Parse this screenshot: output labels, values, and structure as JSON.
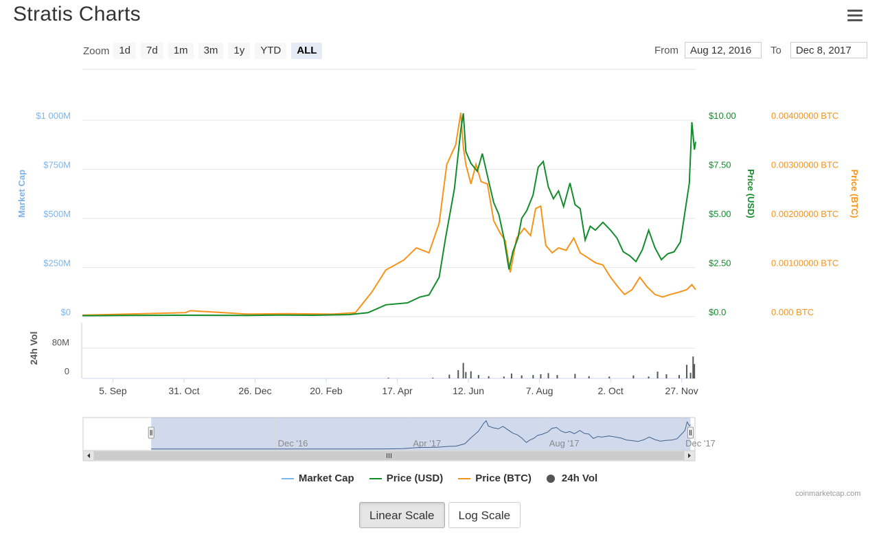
{
  "page": {
    "title": "Stratis Charts"
  },
  "zoom": {
    "label": "Zoom",
    "buttons": [
      "1d",
      "7d",
      "1m",
      "3m",
      "1y",
      "YTD",
      "ALL"
    ],
    "active": "ALL"
  },
  "range": {
    "from_label": "From",
    "from_value": "Aug 12, 2016",
    "to_label": "To",
    "to_value": "Dec 8, 2017"
  },
  "colors": {
    "market_cap": "#7cb5ec",
    "price_usd": "#118c2b",
    "price_btc": "#f7931a",
    "volume": "#555555",
    "grid": "#e6e6e6",
    "navigator_mask": "rgba(102,133,194,0.3)"
  },
  "chart_data": {
    "type": "line",
    "x_tick_labels": [
      "5. Sep",
      "31. Oct",
      "26. Dec",
      "20. Feb",
      "17. Apr",
      "12. Jun",
      "7. Aug",
      "2. Oct",
      "27. Nov"
    ],
    "x_ticks": [
      "2016-09-05",
      "2016-10-31",
      "2016-12-26",
      "2017-02-20",
      "2017-04-17",
      "2017-06-12",
      "2017-08-07",
      "2017-10-02",
      "2017-11-27"
    ],
    "x_range": [
      "2016-08-12",
      "2017-12-08"
    ],
    "axes": {
      "market_cap": {
        "title": "Market Cap",
        "ticks": [
          "$0",
          "$250M",
          "$500M",
          "$750M",
          "$1 000M"
        ],
        "range": [
          0,
          1000000000
        ]
      },
      "price_usd": {
        "title": "Price (USD)",
        "ticks": [
          "$0.0",
          "$2.50",
          "$5.00",
          "$7.50",
          "$10.00"
        ],
        "range": [
          0,
          10
        ]
      },
      "price_btc": {
        "title": "Price (BTC)",
        "ticks": [
          "0.000 BTC",
          "0.00100000 BTC",
          "0.00200000 BTC",
          "0.00300000 BTC",
          "0.00400000 BTC"
        ],
        "range": [
          0,
          0.004
        ]
      },
      "volume": {
        "title": "24h Vol",
        "ticks": [
          "0",
          "80M"
        ],
        "range": [
          0,
          80000000
        ]
      }
    },
    "series": [
      {
        "name": "Price (USD)",
        "axis": "price_usd",
        "points": [
          [
            "2016-08-12",
            0.05
          ],
          [
            "2016-09-15",
            0.06
          ],
          [
            "2016-11-01",
            0.07
          ],
          [
            "2016-12-20",
            0.06
          ],
          [
            "2017-01-15",
            0.08
          ],
          [
            "2017-02-10",
            0.07
          ],
          [
            "2017-03-10",
            0.1
          ],
          [
            "2017-03-25",
            0.2
          ],
          [
            "2017-04-08",
            0.6
          ],
          [
            "2017-04-25",
            0.7
          ],
          [
            "2017-05-05",
            1.0
          ],
          [
            "2017-05-12",
            1.1
          ],
          [
            "2017-05-20",
            2.0
          ],
          [
            "2017-05-25",
            4.0
          ],
          [
            "2017-06-01",
            6.5
          ],
          [
            "2017-06-06",
            9.5
          ],
          [
            "2017-06-08",
            10.35
          ],
          [
            "2017-06-10",
            8.4
          ],
          [
            "2017-06-14",
            7.8
          ],
          [
            "2017-06-19",
            7.4
          ],
          [
            "2017-06-23",
            8.3
          ],
          [
            "2017-06-28",
            6.9
          ],
          [
            "2017-07-02",
            5.8
          ],
          [
            "2017-07-06",
            5.2
          ],
          [
            "2017-07-10",
            4.0
          ],
          [
            "2017-07-14",
            2.4
          ],
          [
            "2017-07-17",
            3.3
          ],
          [
            "2017-07-21",
            4.0
          ],
          [
            "2017-07-24",
            5.0
          ],
          [
            "2017-07-28",
            5.4
          ],
          [
            "2017-08-02",
            6.2
          ],
          [
            "2017-08-06",
            7.6
          ],
          [
            "2017-08-10",
            7.9
          ],
          [
            "2017-08-14",
            6.6
          ],
          [
            "2017-08-18",
            6.0
          ],
          [
            "2017-08-22",
            6.4
          ],
          [
            "2017-08-26",
            5.6
          ],
          [
            "2017-08-31",
            6.8
          ],
          [
            "2017-09-04",
            5.7
          ],
          [
            "2017-09-08",
            5.5
          ],
          [
            "2017-09-12",
            3.9
          ],
          [
            "2017-09-16",
            4.6
          ],
          [
            "2017-09-20",
            4.4
          ],
          [
            "2017-09-26",
            4.8
          ],
          [
            "2017-10-02",
            4.4
          ],
          [
            "2017-10-07",
            4.0
          ],
          [
            "2017-10-12",
            3.3
          ],
          [
            "2017-10-17",
            3.1
          ],
          [
            "2017-10-22",
            2.8
          ],
          [
            "2017-10-27",
            3.4
          ],
          [
            "2017-11-01",
            4.4
          ],
          [
            "2017-11-06",
            3.5
          ],
          [
            "2017-11-11",
            2.9
          ],
          [
            "2017-11-16",
            3.2
          ],
          [
            "2017-11-21",
            3.3
          ],
          [
            "2017-11-26",
            3.8
          ],
          [
            "2017-11-30",
            5.5
          ],
          [
            "2017-12-03",
            6.8
          ],
          [
            "2017-12-05",
            9.9
          ],
          [
            "2017-12-07",
            8.5
          ],
          [
            "2017-12-08",
            8.9
          ]
        ]
      },
      {
        "name": "Price (BTC)",
        "axis": "price_btc",
        "points": [
          [
            "2016-08-12",
            3e-05
          ],
          [
            "2016-09-15",
            5e-05
          ],
          [
            "2016-11-01",
            8e-05
          ],
          [
            "2016-11-05",
            0.00012
          ],
          [
            "2016-12-20",
            5e-05
          ],
          [
            "2017-01-20",
            6e-05
          ],
          [
            "2017-02-25",
            5e-05
          ],
          [
            "2017-03-15",
            8e-05
          ],
          [
            "2017-03-28",
            0.0005
          ],
          [
            "2017-04-08",
            0.00095
          ],
          [
            "2017-04-22",
            0.00115
          ],
          [
            "2017-05-02",
            0.0014
          ],
          [
            "2017-05-12",
            0.0013
          ],
          [
            "2017-05-20",
            0.0019
          ],
          [
            "2017-05-26",
            0.0031
          ],
          [
            "2017-06-02",
            0.0035
          ],
          [
            "2017-06-06",
            0.00415
          ],
          [
            "2017-06-08",
            0.00345
          ],
          [
            "2017-06-10",
            0.0031
          ],
          [
            "2017-06-14",
            0.0027
          ],
          [
            "2017-06-18",
            0.0031
          ],
          [
            "2017-06-22",
            0.00275
          ],
          [
            "2017-06-27",
            0.0027
          ],
          [
            "2017-07-02",
            0.00195
          ],
          [
            "2017-07-07",
            0.0017
          ],
          [
            "2017-07-11",
            0.00155
          ],
          [
            "2017-07-15",
            0.0009
          ],
          [
            "2017-07-20",
            0.0016
          ],
          [
            "2017-07-26",
            0.0018
          ],
          [
            "2017-07-31",
            0.00165
          ],
          [
            "2017-08-04",
            0.0022
          ],
          [
            "2017-08-08",
            0.00225
          ],
          [
            "2017-08-12",
            0.00145
          ],
          [
            "2017-08-17",
            0.0013
          ],
          [
            "2017-08-22",
            0.0014
          ],
          [
            "2017-08-28",
            0.00135
          ],
          [
            "2017-09-03",
            0.0016
          ],
          [
            "2017-09-08",
            0.0013
          ],
          [
            "2017-09-14",
            0.0012
          ],
          [
            "2017-09-20",
            0.0011
          ],
          [
            "2017-09-26",
            0.00105
          ],
          [
            "2017-10-02",
            0.0008
          ],
          [
            "2017-10-08",
            0.0006
          ],
          [
            "2017-10-13",
            0.00045
          ],
          [
            "2017-10-19",
            0.00055
          ],
          [
            "2017-10-25",
            0.0008
          ],
          [
            "2017-10-31",
            0.0006
          ],
          [
            "2017-11-06",
            0.00045
          ],
          [
            "2017-11-12",
            0.0004
          ],
          [
            "2017-11-18",
            0.00045
          ],
          [
            "2017-11-25",
            0.0005
          ],
          [
            "2017-12-01",
            0.00055
          ],
          [
            "2017-12-05",
            0.00065
          ],
          [
            "2017-12-08",
            0.00055
          ]
        ]
      },
      {
        "name": "Market Cap",
        "axis": "market_cap",
        "points": [
          [
            "2016-08-12",
            6000000
          ],
          [
            "2017-03-01",
            7000000
          ],
          [
            "2017-04-15",
            60000000
          ],
          [
            "2017-06-08",
            1040000000
          ],
          [
            "2017-07-15",
            240000000
          ],
          [
            "2017-08-06",
            790000000
          ],
          [
            "2017-10-22",
            280000000
          ],
          [
            "2017-12-05",
            990000000
          ]
        ]
      },
      {
        "name": "24h Vol",
        "axis": "volume",
        "points": [
          [
            "2017-04-10",
            2000000
          ],
          [
            "2017-05-15",
            2000000
          ],
          [
            "2017-05-28",
            10000000
          ],
          [
            "2017-06-04",
            22000000
          ],
          [
            "2017-06-08",
            41000000
          ],
          [
            "2017-06-10",
            17000000
          ],
          [
            "2017-06-14",
            19000000
          ],
          [
            "2017-06-20",
            9000000
          ],
          [
            "2017-06-28",
            6000000
          ],
          [
            "2017-07-10",
            5000000
          ],
          [
            "2017-07-16",
            13000000
          ],
          [
            "2017-07-24",
            8000000
          ],
          [
            "2017-08-02",
            9000000
          ],
          [
            "2017-08-08",
            11000000
          ],
          [
            "2017-08-14",
            14000000
          ],
          [
            "2017-08-21",
            9000000
          ],
          [
            "2017-09-04",
            12000000
          ],
          [
            "2017-09-15",
            6000000
          ],
          [
            "2017-10-01",
            5000000
          ],
          [
            "2017-10-20",
            8000000
          ],
          [
            "2017-11-01",
            5000000
          ],
          [
            "2017-11-08",
            18000000
          ],
          [
            "2017-11-15",
            11000000
          ],
          [
            "2017-11-25",
            9000000
          ],
          [
            "2017-12-01",
            36000000
          ],
          [
            "2017-12-04",
            15000000
          ],
          [
            "2017-12-06",
            58000000
          ],
          [
            "2017-12-07",
            38000000
          ]
        ]
      }
    ],
    "grid": true
  },
  "navigator": {
    "labels": [
      "Dec '16",
      "Apr '17",
      "Aug '17",
      "Dec '17"
    ],
    "label_dates": [
      "2016-12-01",
      "2017-04-01",
      "2017-08-01",
      "2017-12-01"
    ],
    "range": [
      "2016-06-12",
      "2017-12-12"
    ]
  },
  "legend": {
    "items": [
      "Market Cap",
      "Price (USD)",
      "Price (BTC)",
      "24h Vol"
    ]
  },
  "credit": "coinmarketcap.com",
  "scale": {
    "buttons": [
      "Linear Scale",
      "Log Scale"
    ],
    "active": "Linear Scale"
  }
}
